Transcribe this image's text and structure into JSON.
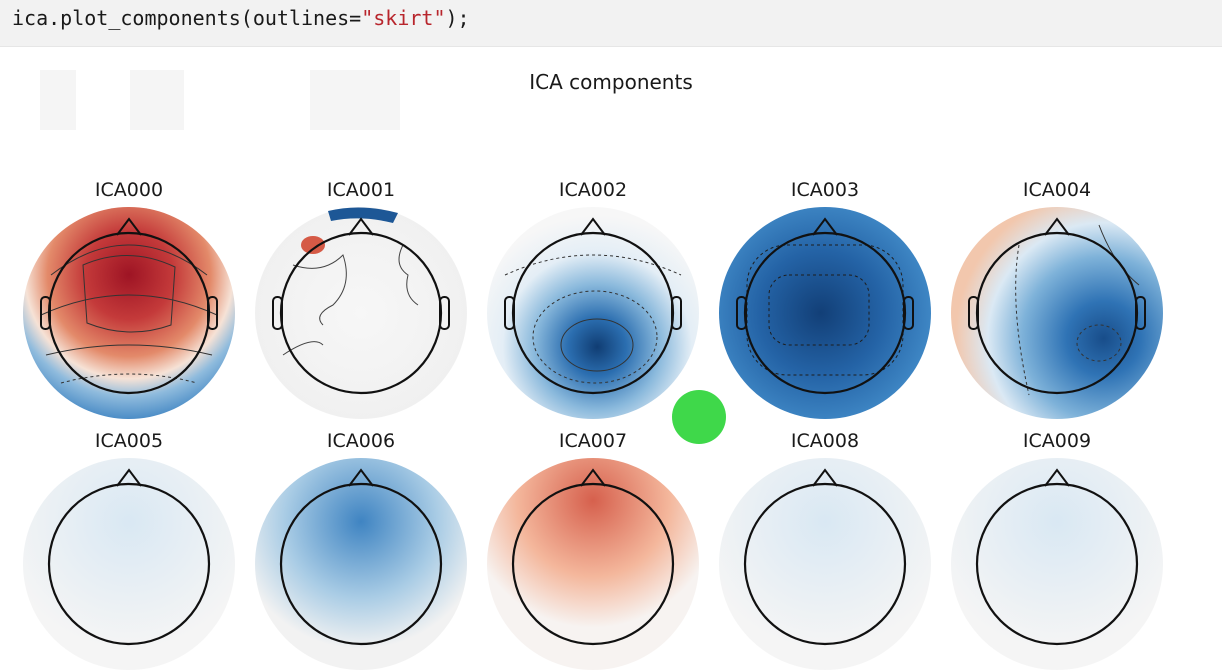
{
  "code": {
    "prefix": "ica.plot_components(outlines=",
    "string_arg": "\"skirt\"",
    "suffix": ");"
  },
  "figure": {
    "title": "ICA components",
    "components": [
      {
        "label": "ICA000",
        "pattern": "frontal-red"
      },
      {
        "label": "ICA001",
        "pattern": "neutral"
      },
      {
        "label": "ICA002",
        "pattern": "central-blue"
      },
      {
        "label": "ICA003",
        "pattern": "all-blue"
      },
      {
        "label": "ICA004",
        "pattern": "right-blue"
      },
      {
        "label": "ICA005",
        "pattern": "partial"
      },
      {
        "label": "ICA006",
        "pattern": "partial"
      },
      {
        "label": "ICA007",
        "pattern": "partial"
      },
      {
        "label": "ICA008",
        "pattern": "partial"
      },
      {
        "label": "ICA009",
        "pattern": "partial"
      }
    ]
  },
  "colors": {
    "red_strong": "#b2182b",
    "red": "#d6604d",
    "red_light": "#f4a582",
    "neutral": "#f4f4f4",
    "blue_light": "#92c5de",
    "blue": "#4393c3",
    "blue_strong": "#2166ac",
    "overlay_dot": "#3fd84a"
  }
}
